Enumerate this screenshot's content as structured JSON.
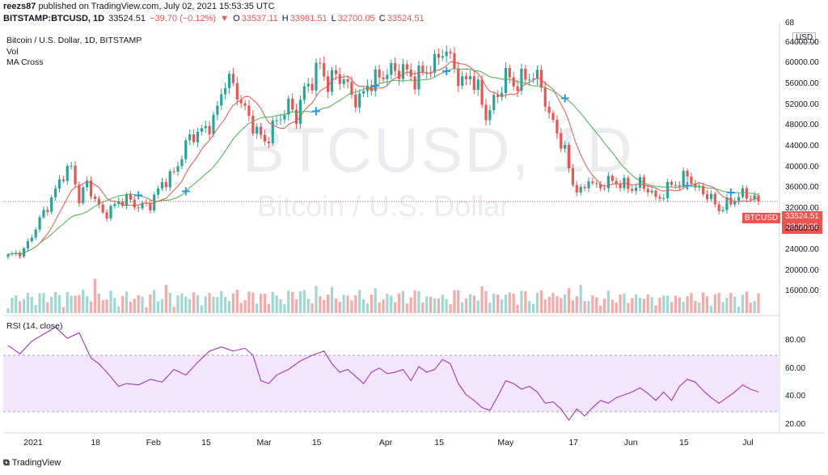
{
  "header": {
    "publish_line": "published on TradingView.com, July 02, 2021 15:53:35 UTC",
    "user": "reezs87",
    "symbol": "BITSTAMP:BTCUSD, 1D",
    "last": "33524.51",
    "change": "−39.70 (−0.12%)",
    "o_label": "O",
    "o_value": "33537.11",
    "h_label": "H",
    "h_value": "33981.51",
    "l_label": "L",
    "l_value": "32700.05",
    "c_label": "C",
    "c_value": "33524.51"
  },
  "legend": {
    "title": "Bitcoin / U.S. Dollar, 1D, BITSTAMP",
    "vol": "Vol",
    "ma": "MA Cross",
    "rsi": "RSI (14, close)"
  },
  "watermark": {
    "big": "BTCUSD, 1D",
    "small": "Bitcoin / U.S. Dollar"
  },
  "currency": "USD",
  "price_tag": {
    "symbol": "BTCUSD",
    "price": "33524.51",
    "countdown": "08:06:26"
  },
  "footer": {
    "brand": "TradingView"
  },
  "colors": {
    "up": "#26a69a",
    "down": "#ef5350",
    "ma_fast": "#ef5350",
    "ma_slow": "#4caf50",
    "rsi_line": "#9c27b0",
    "rsi_band": "#f3e5fc",
    "cross": "#2196f3"
  },
  "chart_data": [
    {
      "type": "candlestick",
      "title": "Bitcoin / U.S. Dollar, 1D, BITSTAMP",
      "ylim": [
        12000,
        68000
      ],
      "y_ticks": [
        "64000.00",
        "60000.00",
        "56000.00",
        "52000.00",
        "48000.00",
        "44000.00",
        "40000.00",
        "36000.00",
        "32000.00",
        "28000.00",
        "24000.00",
        "20000.00",
        "16000.00"
      ],
      "y_tick_values": [
        64000,
        60000,
        56000,
        52000,
        48000,
        44000,
        40000,
        36000,
        32000,
        28000,
        24000,
        20000,
        16000
      ],
      "y_top_label": "68",
      "x_labels": [
        "2021",
        "18",
        "Feb",
        "15",
        "Mar",
        "15",
        "Apr",
        "15",
        "May",
        "17",
        "Jun",
        "15",
        "Jul"
      ],
      "x_label_index": [
        6,
        23,
        37,
        51,
        65,
        79,
        96,
        110,
        126,
        144,
        158,
        172,
        188
      ],
      "anchor_closes": [
        [
          0,
          23000
        ],
        [
          4,
          24000
        ],
        [
          8,
          30000
        ],
        [
          11,
          34000
        ],
        [
          14,
          39000
        ],
        [
          16,
          40000
        ],
        [
          18,
          34000
        ],
        [
          20,
          37000
        ],
        [
          24,
          31000
        ],
        [
          26,
          32000
        ],
        [
          28,
          33500
        ],
        [
          30,
          34000
        ],
        [
          33,
          32500
        ],
        [
          36,
          33000
        ],
        [
          39,
          37000
        ],
        [
          42,
          39000
        ],
        [
          46,
          46000
        ],
        [
          49,
          47000
        ],
        [
          52,
          49000
        ],
        [
          55,
          57000
        ],
        [
          57,
          56000
        ],
        [
          60,
          51000
        ],
        [
          63,
          47000
        ],
        [
          65,
          45000
        ],
        [
          68,
          49000
        ],
        [
          71,
          52000
        ],
        [
          73,
          50000
        ],
        [
          75,
          55000
        ],
        [
          77,
          57000
        ],
        [
          79,
          60000
        ],
        [
          81,
          56000
        ],
        [
          83,
          58000
        ],
        [
          85,
          57000
        ],
        [
          87,
          54000
        ],
        [
          89,
          53000
        ],
        [
          91,
          56000
        ],
        [
          93,
          57000
        ],
        [
          96,
          58500
        ],
        [
          100,
          59000
        ],
        [
          103,
          57000
        ],
        [
          105,
          58500
        ],
        [
          108,
          60000
        ],
        [
          110,
          63000
        ],
        [
          112,
          61000
        ],
        [
          115,
          56000
        ],
        [
          117,
          58000
        ],
        [
          119,
          55000
        ],
        [
          121,
          50000
        ],
        [
          124,
          54000
        ],
        [
          126,
          58000
        ],
        [
          128,
          56000
        ],
        [
          130,
          57000
        ],
        [
          133,
          58000
        ],
        [
          135,
          56000
        ],
        [
          137,
          50000
        ],
        [
          139,
          47000
        ],
        [
          141,
          43000
        ],
        [
          143,
          37000
        ],
        [
          145,
          35000
        ],
        [
          147,
          38000
        ],
        [
          149,
          36000
        ],
        [
          152,
          37500
        ],
        [
          155,
          37000
        ],
        [
          158,
          36000
        ],
        [
          160,
          37000
        ],
        [
          162,
          36000
        ],
        [
          164,
          34000
        ],
        [
          166,
          35000
        ],
        [
          168,
          37000
        ],
        [
          170,
          37000
        ],
        [
          172,
          39000
        ],
        [
          174,
          36000
        ],
        [
          176,
          35500
        ],
        [
          178,
          34000
        ],
        [
          180,
          32000
        ],
        [
          182,
          33000
        ],
        [
          184,
          34000
        ],
        [
          186,
          35000
        ],
        [
          188,
          34500
        ],
        [
          190,
          33524
        ]
      ],
      "ma_crosses": [
        33,
        45,
        78,
        93,
        111,
        141,
        172,
        183
      ],
      "volume_spikes": [
        [
          22,
          29000
        ],
        [
          40,
          26000
        ],
        [
          145,
          26000
        ],
        [
          53,
          20000
        ],
        [
          54,
          18000
        ]
      ]
    },
    {
      "type": "line",
      "title": "RSI (14, close)",
      "ylim": [
        15,
        97
      ],
      "y_ticks": [
        "80.00",
        "60.00",
        "40.00",
        "20.00"
      ],
      "y_tick_values": [
        80,
        60,
        40,
        20
      ],
      "band": [
        30,
        70
      ],
      "anchor_values": [
        [
          0,
          77
        ],
        [
          3,
          71
        ],
        [
          6,
          80
        ],
        [
          9,
          85
        ],
        [
          12,
          90
        ],
        [
          15,
          82
        ],
        [
          18,
          86
        ],
        [
          21,
          68
        ],
        [
          23,
          64
        ],
        [
          25,
          58
        ],
        [
          28,
          48
        ],
        [
          30,
          50
        ],
        [
          33,
          49
        ],
        [
          36,
          53
        ],
        [
          39,
          51
        ],
        [
          42,
          60
        ],
        [
          45,
          56
        ],
        [
          48,
          65
        ],
        [
          51,
          73
        ],
        [
          54,
          76
        ],
        [
          57,
          73
        ],
        [
          60,
          75
        ],
        [
          62,
          70
        ],
        [
          64,
          52
        ],
        [
          66,
          50
        ],
        [
          68,
          56
        ],
        [
          71,
          60
        ],
        [
          74,
          66
        ],
        [
          77,
          70
        ],
        [
          80,
          73
        ],
        [
          82,
          64
        ],
        [
          84,
          58
        ],
        [
          86,
          60
        ],
        [
          88,
          55
        ],
        [
          90,
          50
        ],
        [
          92,
          58
        ],
        [
          94,
          61
        ],
        [
          96,
          57
        ],
        [
          98,
          58
        ],
        [
          100,
          60
        ],
        [
          102,
          52
        ],
        [
          104,
          62
        ],
        [
          106,
          58
        ],
        [
          108,
          60
        ],
        [
          110,
          67
        ],
        [
          112,
          64
        ],
        [
          114,
          50
        ],
        [
          116,
          42
        ],
        [
          118,
          38
        ],
        [
          120,
          33
        ],
        [
          122,
          31
        ],
        [
          124,
          41
        ],
        [
          126,
          52
        ],
        [
          128,
          50
        ],
        [
          130,
          46
        ],
        [
          132,
          48
        ],
        [
          134,
          44
        ],
        [
          136,
          36
        ],
        [
          138,
          37
        ],
        [
          140,
          32
        ],
        [
          142,
          24
        ],
        [
          144,
          32
        ],
        [
          146,
          27
        ],
        [
          148,
          33
        ],
        [
          150,
          38
        ],
        [
          152,
          36
        ],
        [
          154,
          40
        ],
        [
          156,
          42
        ],
        [
          158,
          44
        ],
        [
          160,
          47
        ],
        [
          162,
          43
        ],
        [
          164,
          38
        ],
        [
          166,
          44
        ],
        [
          168,
          38
        ],
        [
          170,
          48
        ],
        [
          172,
          53
        ],
        [
          174,
          51
        ],
        [
          176,
          45
        ],
        [
          178,
          40
        ],
        [
          180,
          36
        ],
        [
          182,
          40
        ],
        [
          184,
          44
        ],
        [
          186,
          49
        ],
        [
          188,
          46
        ],
        [
          190,
          44
        ]
      ]
    }
  ]
}
